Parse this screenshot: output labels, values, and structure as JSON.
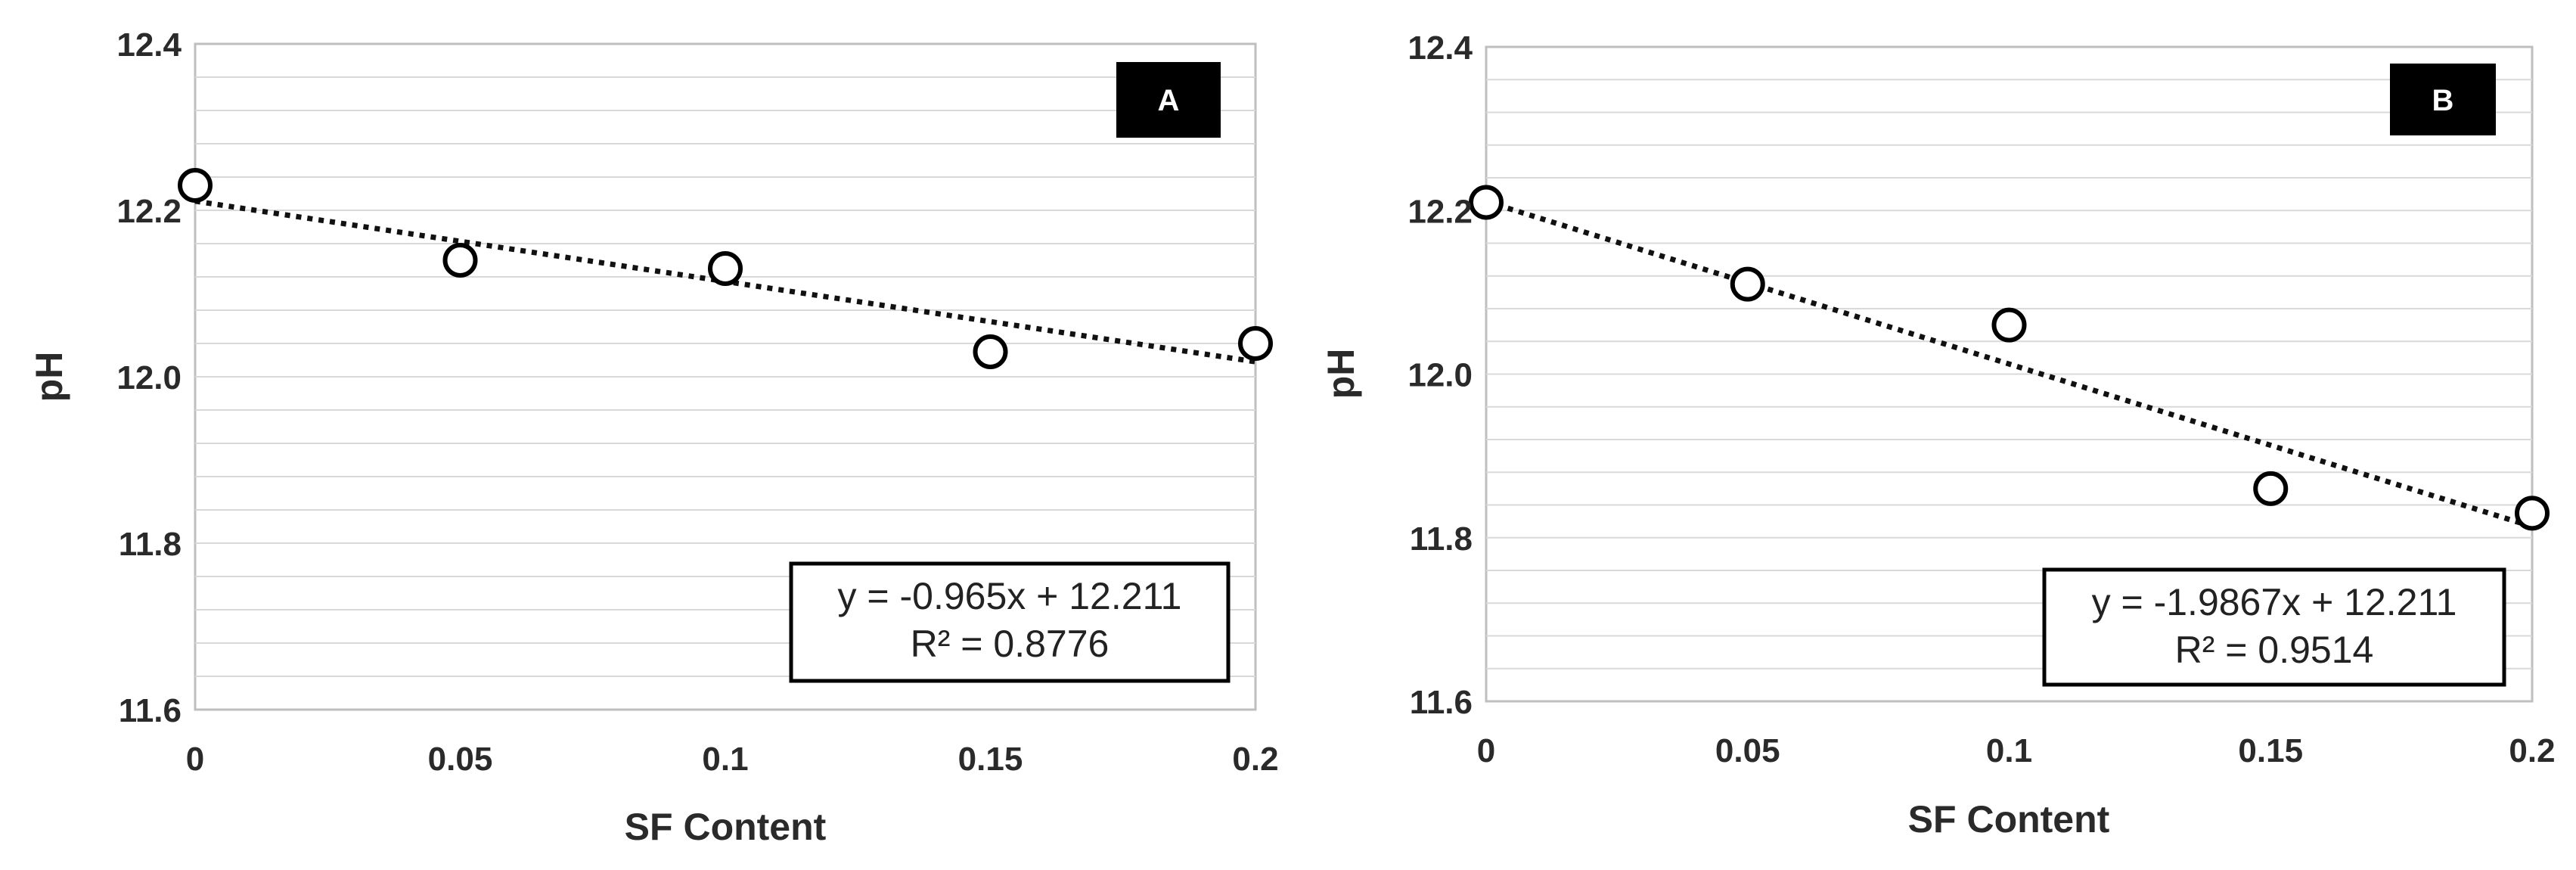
{
  "chart_data": [
    {
      "type": "scatter",
      "panel_label": "A",
      "xlabel": "SF Content",
      "ylabel": "pH",
      "xlim": [
        0,
        0.2
      ],
      "ylim": [
        11.6,
        12.4
      ],
      "x_ticks": [
        "0",
        "0.05",
        "0.1",
        "0.15",
        "0.2"
      ],
      "y_ticks": [
        "11.6",
        "11.8",
        "12.0",
        "12.2",
        "12.4"
      ],
      "x": [
        0,
        0.05,
        0.1,
        0.15,
        0.2
      ],
      "y": [
        12.23,
        12.14,
        12.13,
        12.03,
        12.04
      ],
      "trendline": {
        "slope": -0.965,
        "intercept": 12.211,
        "style": "dotted"
      },
      "equation": "y = -0.965x + 12.211",
      "r_squared": "R² = 0.8776",
      "grid": true
    },
    {
      "type": "scatter",
      "panel_label": "B",
      "xlabel": "SF Content",
      "ylabel": "pH",
      "xlim": [
        0,
        0.2
      ],
      "ylim": [
        11.6,
        12.4
      ],
      "x_ticks": [
        "0",
        "0.05",
        "0.1",
        "0.15",
        "0.2"
      ],
      "y_ticks": [
        "11.6",
        "11.8",
        "12.0",
        "12.2",
        "12.4"
      ],
      "x": [
        0,
        0.05,
        0.1,
        0.15,
        0.2
      ],
      "y": [
        12.21,
        12.11,
        12.06,
        11.86,
        11.83
      ],
      "trendline": {
        "slope": -1.9867,
        "intercept": 12.211,
        "style": "dotted"
      },
      "equation": "y = -1.9867x + 12.211",
      "r_squared": "R² = 0.9514",
      "grid": true
    }
  ],
  "colors": {
    "marker_stroke": "#000000",
    "marker_fill": "#ffffff",
    "trendline": "#111111",
    "grid": "#d9d9d9",
    "plot_border": "#bfbfbf",
    "label_box": "#000000"
  }
}
